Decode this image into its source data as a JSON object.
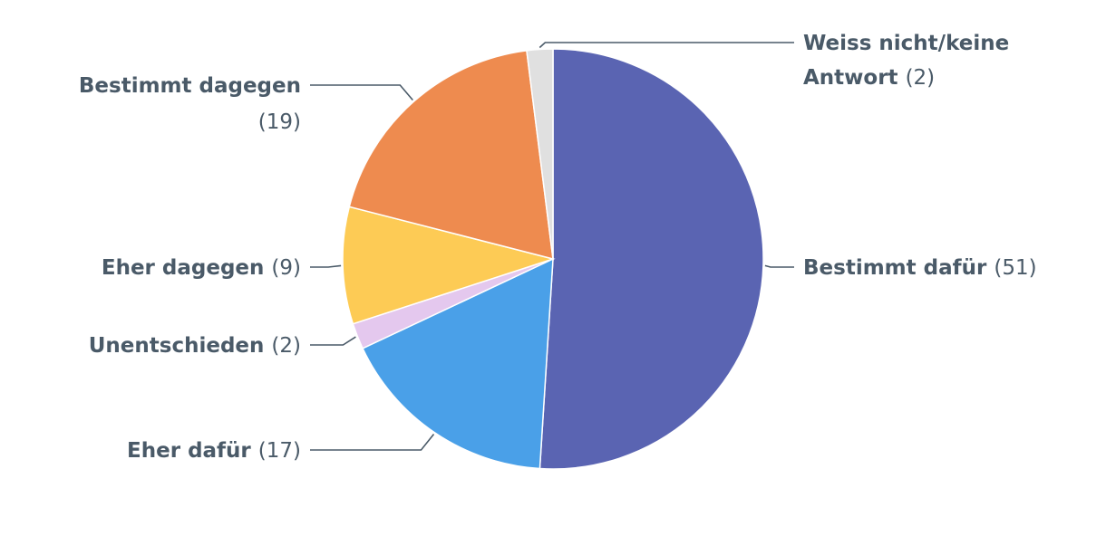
{
  "chart_data": {
    "type": "pie",
    "title": "",
    "slices": [
      {
        "label": "Bestimmt dafür",
        "value": 51,
        "display_count": "(51)",
        "color": "#5a64b2"
      },
      {
        "label": "Eher dafür",
        "value": 17,
        "display_count": "(17)",
        "color": "#4aa0e8"
      },
      {
        "label": "Unentschieden",
        "value": 2,
        "display_count": "(2)",
        "color": "#e4c8ee"
      },
      {
        "label": "Eher dagegen",
        "value": 9,
        "display_count": "(9)",
        "color": "#fdcb55"
      },
      {
        "label": "Bestimmt dagegen",
        "value": 19,
        "display_count": "(19)",
        "color": "#ee8b4f"
      },
      {
        "label": "Weiss nicht/keine Antwort",
        "value": 2,
        "display_count": "(2)",
        "color": "#e0e0e0"
      }
    ],
    "start": "12 o'clock",
    "direction": "clockwise",
    "legend": "none (direct labels with leader lines)"
  },
  "colors": {
    "label_text": "#4a5a68",
    "background": "#ffffff"
  }
}
